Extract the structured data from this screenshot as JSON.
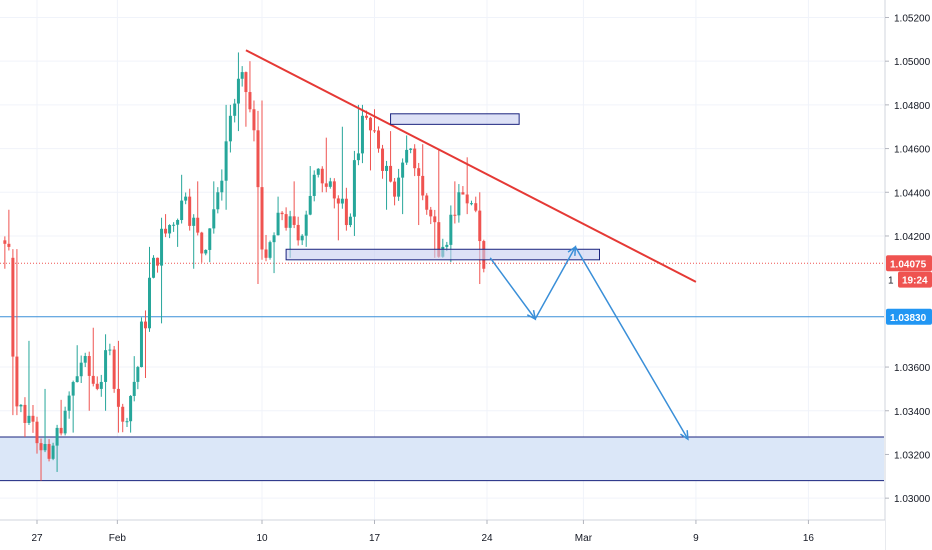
{
  "chart_data": {
    "type": "candlestick",
    "title": "",
    "xlabel": "",
    "ylabel": "",
    "ylim": [
      1.029,
      1.0528
    ],
    "y_ticks": [
      "1.05200",
      "1.05000",
      "1.04800",
      "1.04600",
      "1.04400",
      "1.04200",
      "1.03600",
      "1.03400",
      "1.03200",
      "1.03000"
    ],
    "x_ticks": [
      {
        "label": "27",
        "day": 0
      },
      {
        "label": "Feb",
        "day": 5
      },
      {
        "label": "10",
        "day": 14
      },
      {
        "label": "17",
        "day": 21
      },
      {
        "label": "24",
        "day": 28
      },
      {
        "label": "Mar",
        "day": 34
      },
      {
        "label": "9",
        "day": 41
      },
      {
        "label": "16",
        "day": 48
      }
    ],
    "candles_summary": [
      {
        "day": -2.0,
        "open": 1.0418,
        "high": 1.0432,
        "low": 1.0405,
        "close": 1.0415
      },
      {
        "day": -1.5,
        "open": 1.041,
        "high": 1.0414,
        "low": 1.0338,
        "close": 1.0342
      },
      {
        "day": -1.0,
        "open": 1.0342,
        "high": 1.0372,
        "low": 1.0328,
        "close": 1.0335
      },
      {
        "day": 0.0,
        "open": 1.0335,
        "high": 1.035,
        "low": 1.0308,
        "close": 1.0318
      },
      {
        "day": 1.0,
        "open": 1.0318,
        "high": 1.0345,
        "low": 1.0312,
        "close": 1.034
      },
      {
        "day": 2.0,
        "open": 1.034,
        "high": 1.037,
        "low": 1.033,
        "close": 1.0362
      },
      {
        "day": 3.0,
        "open": 1.0362,
        "high": 1.0378,
        "low": 1.034,
        "close": 1.035
      },
      {
        "day": 4.0,
        "open": 1.035,
        "high": 1.0375,
        "low": 1.034,
        "close": 1.0368
      },
      {
        "day": 4.8,
        "open": 1.0368,
        "high": 1.0372,
        "low": 1.033,
        "close": 1.0335
      },
      {
        "day": 5.6,
        "open": 1.0335,
        "high": 1.0365,
        "low": 1.033,
        "close": 1.036
      },
      {
        "day": 6.5,
        "open": 1.036,
        "high": 1.0415,
        "low": 1.0355,
        "close": 1.041
      },
      {
        "day": 7.5,
        "open": 1.041,
        "high": 1.043,
        "low": 1.038,
        "close": 1.0425
      },
      {
        "day": 8.5,
        "open": 1.0425,
        "high": 1.0448,
        "low": 1.0415,
        "close": 1.0438
      },
      {
        "day": 9.5,
        "open": 1.0438,
        "high": 1.0445,
        "low": 1.0405,
        "close": 1.0412
      },
      {
        "day": 10.5,
        "open": 1.0412,
        "high": 1.0445,
        "low": 1.0408,
        "close": 1.044
      },
      {
        "day": 11.5,
        "open": 1.044,
        "high": 1.048,
        "low": 1.0432,
        "close": 1.0475
      },
      {
        "day": 12.3,
        "open": 1.0475,
        "high": 1.0504,
        "low": 1.0468,
        "close": 1.0495
      },
      {
        "day": 13.0,
        "open": 1.0495,
        "high": 1.05,
        "low": 1.047,
        "close": 1.0478
      },
      {
        "day": 13.5,
        "open": 1.0478,
        "high": 1.0482,
        "low": 1.0398,
        "close": 1.041
      },
      {
        "day": 14.5,
        "open": 1.041,
        "high": 1.0438,
        "low": 1.0403,
        "close": 1.043
      },
      {
        "day": 15.5,
        "open": 1.043,
        "high": 1.0445,
        "low": 1.041,
        "close": 1.0418
      },
      {
        "day": 16.5,
        "open": 1.0418,
        "high": 1.0452,
        "low": 1.0415,
        "close": 1.0448
      },
      {
        "day": 17.5,
        "open": 1.0448,
        "high": 1.0465,
        "low": 1.044,
        "close": 1.0445
      },
      {
        "day": 18.5,
        "open": 1.0445,
        "high": 1.047,
        "low": 1.0418,
        "close": 1.0425
      },
      {
        "day": 19.5,
        "open": 1.0425,
        "high": 1.048,
        "low": 1.042,
        "close": 1.0475
      },
      {
        "day": 20.5,
        "open": 1.0475,
        "high": 1.0478,
        "low": 1.045,
        "close": 1.046
      },
      {
        "day": 21.5,
        "open": 1.046,
        "high": 1.0468,
        "low": 1.0432,
        "close": 1.0438
      },
      {
        "day": 22.5,
        "open": 1.0438,
        "high": 1.0466,
        "low": 1.043,
        "close": 1.046
      },
      {
        "day": 23.5,
        "open": 1.046,
        "high": 1.0462,
        "low": 1.0425,
        "close": 1.0432
      },
      {
        "day": 24.5,
        "open": 1.0432,
        "high": 1.046,
        "low": 1.041,
        "close": 1.0415
      },
      {
        "day": 25.5,
        "open": 1.0415,
        "high": 1.0445,
        "low": 1.0408,
        "close": 1.044
      },
      {
        "day": 26.5,
        "open": 1.044,
        "high": 1.0456,
        "low": 1.043,
        "close": 1.0435
      },
      {
        "day": 27.3,
        "open": 1.0435,
        "high": 1.044,
        "low": 1.0398,
        "close": 1.0405
      }
    ],
    "annotations": {
      "trendline_resistance": {
        "from": {
          "day": 13.0,
          "price": 1.0505
        },
        "to": {
          "day": 41.0,
          "price": 1.0399
        },
        "color": "#e53935"
      },
      "resistance_box": {
        "day_start": 22.0,
        "day_end": 30.0,
        "price_top": 1.0475,
        "price_bottom": 1.0472,
        "color": "#1a237e"
      },
      "support_box": {
        "day_start": 15.5,
        "day_end": 35.0,
        "price_top": 1.0413,
        "price_bottom": 1.041,
        "color": "#1a237e"
      },
      "target_line_price": 1.0383,
      "support_zone": {
        "price_top": 1.0328,
        "price_bottom": 1.0308,
        "fill": "#dbe7f8",
        "border": "#1a237e"
      },
      "current_price_line": 1.04075,
      "projection_path": [
        {
          "day": 28.2,
          "price": 1.041
        },
        {
          "day": 31.0,
          "price": 1.0382
        },
        {
          "day": 33.5,
          "price": 1.0415
        },
        {
          "day": 40.5,
          "price": 1.0327
        }
      ],
      "projection_color": "#3a8fd8"
    },
    "price_labels": [
      {
        "text": "1.04075",
        "price": 1.04075,
        "bg": "#ef5350"
      },
      {
        "text": "19:24",
        "price": 1.04,
        "bg": "#ef5350",
        "prefix": "1"
      },
      {
        "text": "1.03830",
        "price": 1.0383,
        "bg": "#2196f3"
      }
    ],
    "colors": {
      "up": "#26a69a",
      "down": "#ef5350",
      "grid": "#f0f3fa",
      "axis_text": "#131722"
    }
  }
}
